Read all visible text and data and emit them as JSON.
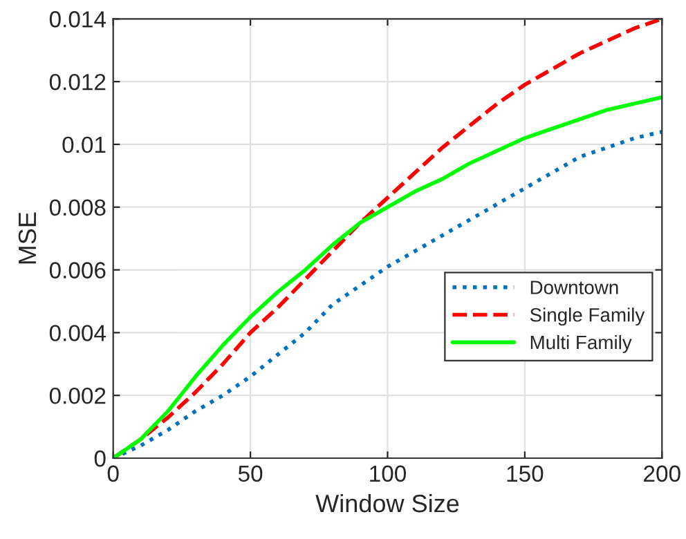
{
  "chart_data": {
    "type": "line",
    "xlabel": "Window Size",
    "ylabel": "MSE",
    "x": [
      0,
      10,
      20,
      30,
      40,
      50,
      60,
      70,
      80,
      90,
      100,
      110,
      120,
      130,
      140,
      150,
      160,
      170,
      180,
      190,
      200
    ],
    "series": [
      {
        "name": "Downtown",
        "color": "#0072bd",
        "line_style": "dotted",
        "values": [
          0,
          0.0004,
          0.0009,
          0.0015,
          0.002,
          0.0026,
          0.0033,
          0.004,
          0.0049,
          0.0055,
          0.0061,
          0.0066,
          0.0071,
          0.0076,
          0.0081,
          0.0086,
          0.0091,
          0.0096,
          0.0099,
          0.0102,
          0.0104
        ]
      },
      {
        "name": "Single Family",
        "color": "#ff0000",
        "line_style": "dashed",
        "values": [
          0,
          0.0006,
          0.0013,
          0.0021,
          0.003,
          0.004,
          0.0048,
          0.0057,
          0.0066,
          0.0075,
          0.0083,
          0.0091,
          0.0099,
          0.0106,
          0.0113,
          0.0119,
          0.0124,
          0.0129,
          0.0133,
          0.0137,
          0.014
        ]
      },
      {
        "name": "Multi Family",
        "color": "#00ff00",
        "line_style": "solid",
        "values": [
          0,
          0.0006,
          0.0015,
          0.0026,
          0.0036,
          0.0045,
          0.0053,
          0.006,
          0.0068,
          0.0075,
          0.008,
          0.0085,
          0.0089,
          0.0094,
          0.0098,
          0.0102,
          0.0105,
          0.0108,
          0.0111,
          0.0113,
          0.0115
        ]
      }
    ],
    "xlim": [
      0,
      200
    ],
    "xticks": [
      0,
      50,
      100,
      150,
      200
    ],
    "ylim": [
      0,
      0.014
    ],
    "yticks": [
      0,
      0.002,
      0.004,
      0.006,
      0.008,
      0.01,
      0.012,
      0.014
    ],
    "grid": true,
    "legend": "bottom right"
  }
}
